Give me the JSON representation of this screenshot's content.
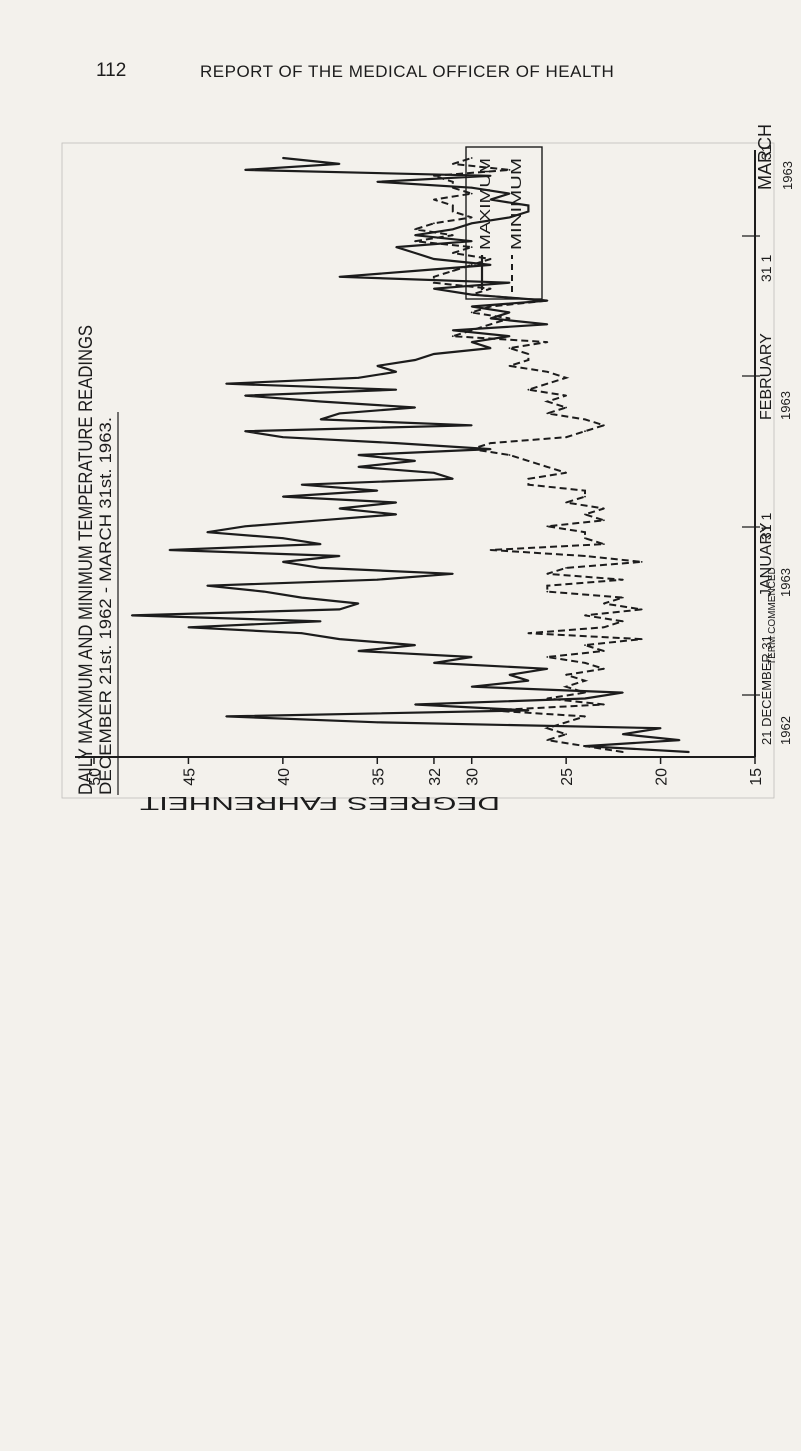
{
  "page": {
    "number": "112",
    "running_head": "REPORT OF THE MEDICAL OFFICER OF HEALTH"
  },
  "chart_data": {
    "type": "line",
    "title": "DAILY MAXIMUM AND MINIMUM TEMPERATURE READINGS",
    "subtitle": "DECEMBER 21st. 1962 - MARCH 31st. 1963.",
    "value_axis_label": "DEGREES FAHRENHEIT",
    "value_axis_range": [
      15,
      50
    ],
    "value_ticks": [
      50,
      45,
      40,
      35,
      32,
      30,
      25,
      20,
      15
    ],
    "legend": {
      "placement": "top-right",
      "max_label": "MAXIMUM",
      "min_label": "MINIMUM"
    },
    "date_markers": [
      "21 DECEMBER 31",
      "TERM COMMENCED",
      "1962",
      "JANUARY",
      "1963",
      "31 1",
      "FEBRUARY",
      "1963",
      "31 1",
      "MARCH",
      "1963",
      "31"
    ],
    "series": [
      {
        "name": "MAXIMUM",
        "values": [
          18.5,
          24,
          19,
          22,
          20,
          35,
          43,
          27,
          33,
          24,
          22,
          30,
          27,
          28,
          26,
          32,
          30,
          36,
          33,
          37,
          39,
          45,
          38,
          48,
          37,
          36,
          39,
          41,
          44,
          35,
          31,
          38,
          40,
          37,
          46,
          38,
          40,
          44,
          42,
          38,
          34,
          37,
          34,
          40,
          35,
          39,
          31,
          32,
          36,
          33,
          36,
          29,
          34,
          40,
          42,
          30,
          38,
          37,
          33,
          38,
          42,
          34,
          43,
          36,
          34,
          35,
          33,
          32,
          29,
          30,
          28,
          31,
          26,
          29,
          28,
          30,
          26,
          30,
          32,
          28,
          37,
          33,
          29,
          32,
          33,
          34,
          30,
          33,
          31,
          30,
          28,
          27,
          27,
          29,
          28,
          30,
          35,
          29,
          42,
          37,
          40
        ]
      },
      {
        "name": "MINIMUM",
        "values": [
          22,
          24,
          26,
          25,
          26,
          25,
          24,
          29,
          23,
          26,
          24,
          25,
          24,
          25,
          23,
          24,
          26,
          23,
          24,
          21,
          27,
          23,
          22,
          24,
          21,
          23,
          22,
          26,
          26,
          22,
          26,
          25,
          21,
          24,
          29,
          23,
          24,
          24,
          26,
          23,
          24,
          23,
          25,
          24,
          24,
          27,
          27,
          25,
          26,
          27,
          28,
          30,
          29,
          25,
          24,
          23,
          24,
          26,
          25,
          26,
          25,
          27,
          26,
          25,
          26,
          28,
          27,
          27,
          28,
          26,
          31,
          30,
          29,
          28,
          30,
          29,
          26,
          30,
          29,
          32,
          32,
          31,
          30,
          29,
          31,
          30,
          33,
          31,
          33,
          32,
          30,
          31,
          31,
          32,
          30,
          31,
          31,
          32,
          28,
          31,
          30
        ]
      }
    ]
  }
}
